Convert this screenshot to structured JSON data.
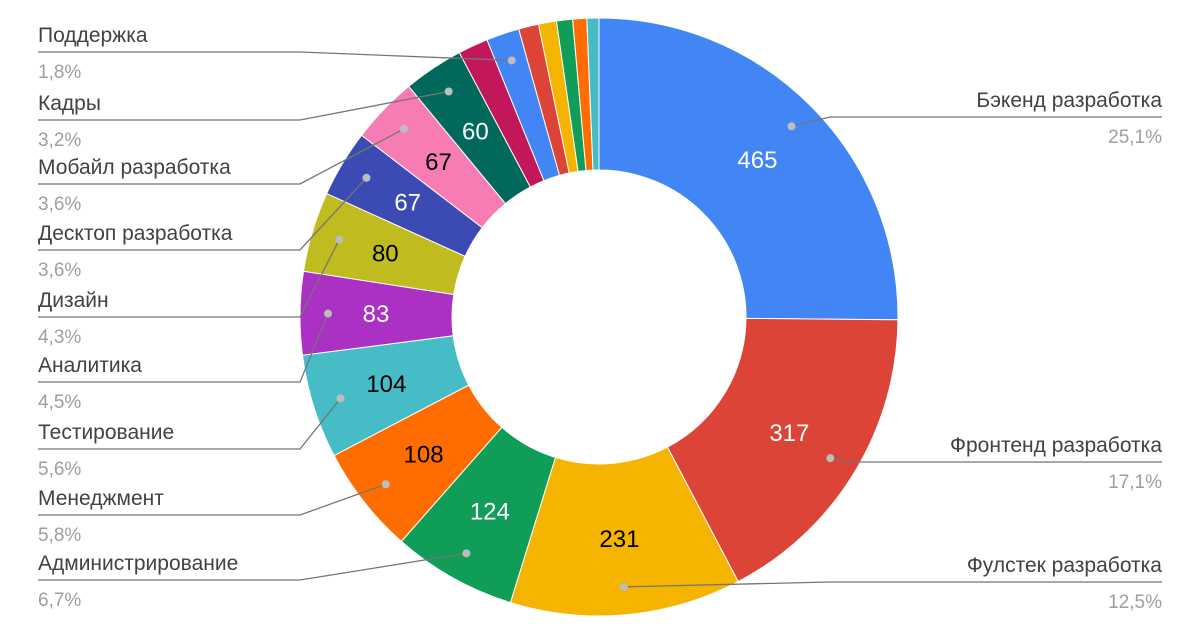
{
  "chart_data": {
    "type": "pie",
    "donut": true,
    "slices": [
      {
        "label": "Бэкенд разработка",
        "value": 465,
        "value_label": "465",
        "percent": "25,1%",
        "color": "#4285f4",
        "text_color": "#ffffff"
      },
      {
        "label": "Фронтенд разработка",
        "value": 317,
        "value_label": "317",
        "percent": "17,1%",
        "color": "#db4437",
        "text_color": "#ffffff"
      },
      {
        "label": "Фулстек разработка",
        "value": 231,
        "value_label": "231",
        "percent": "12,5%",
        "color": "#f4b400",
        "text_color": "#000000"
      },
      {
        "label": "Администрирование",
        "value": 124,
        "value_label": "124",
        "percent": "6,7%",
        "color": "#0f9d58",
        "text_color": "#ffffff"
      },
      {
        "label": "Менеджмент",
        "value": 108,
        "value_label": "108",
        "percent": "5,8%",
        "color": "#ff6d01",
        "text_color": "#000000"
      },
      {
        "label": "Тестирование",
        "value": 104,
        "value_label": "104",
        "percent": "5,6%",
        "color": "#46bdc6",
        "text_color": "#000000"
      },
      {
        "label": "Аналитика",
        "value": 83,
        "value_label": "83",
        "percent": "4,5%",
        "color": "#ab30c4",
        "text_color": "#ffffff"
      },
      {
        "label": "Дизайн",
        "value": 80,
        "value_label": "80",
        "percent": "4,3%",
        "color": "#c0bb1f",
        "text_color": "#000000"
      },
      {
        "label": "Десктоп разработка",
        "value": 67,
        "value_label": "67",
        "percent": "3,6%",
        "color": "#3c4ab4",
        "text_color": "#ffffff"
      },
      {
        "label": "Мобайл разработка",
        "value": 67,
        "value_label": "67",
        "percent": "3,6%",
        "color": "#f77cb4",
        "text_color": "#000000"
      },
      {
        "label": "Кадры",
        "value": 60,
        "value_label": "60",
        "percent": "3,2%",
        "color": "#01695c",
        "text_color": "#ffffff"
      },
      {
        "label": "",
        "value": 30,
        "value_label": "",
        "percent": "",
        "color": "#c2185b",
        "text_color": "#ffffff"
      },
      {
        "label": "Поддержка",
        "value": 33,
        "value_label": "",
        "percent": "1,8%",
        "color": "#4285f4",
        "text_color": "#ffffff"
      },
      {
        "label": "",
        "value": 20,
        "value_label": "",
        "percent": "",
        "color": "#db4437",
        "text_color": "#ffffff"
      },
      {
        "label": "",
        "value": 18,
        "value_label": "",
        "percent": "",
        "color": "#f4b400",
        "text_color": "#ffffff"
      },
      {
        "label": "",
        "value": 16,
        "value_label": "",
        "percent": "",
        "color": "#0f9d58",
        "text_color": "#ffffff"
      },
      {
        "label": "",
        "value": 14,
        "value_label": "",
        "percent": "",
        "color": "#ff6d01",
        "text_color": "#ffffff"
      },
      {
        "label": "",
        "value": 12,
        "value_label": "",
        "percent": "",
        "color": "#46bdc6",
        "text_color": "#ffffff"
      }
    ]
  }
}
